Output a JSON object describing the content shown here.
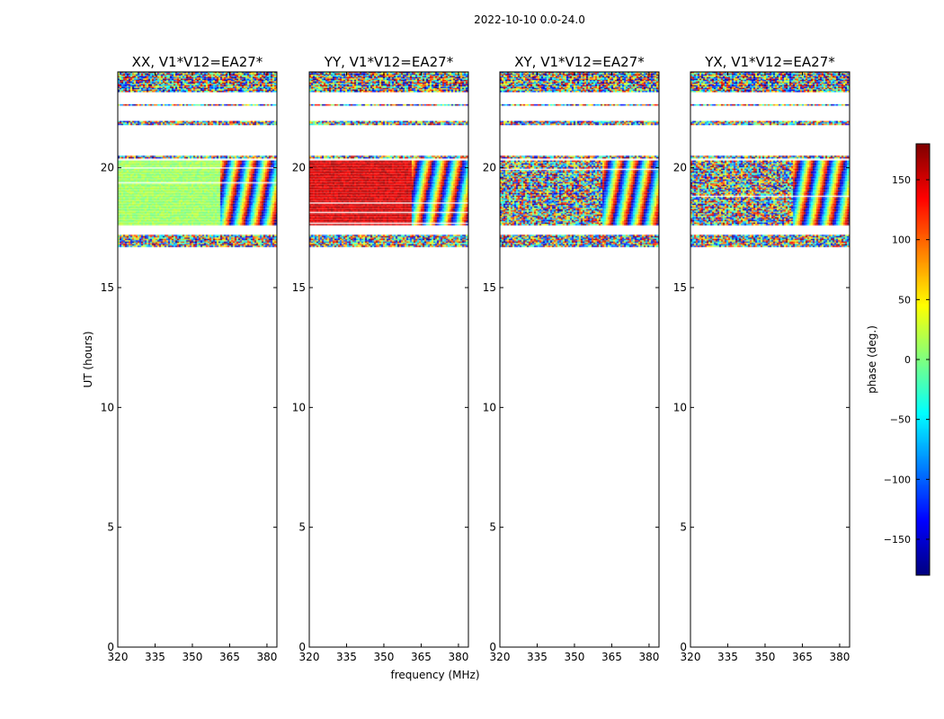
{
  "figure": {
    "suptitle": "2022-10-10 0.0-24.0"
  },
  "chart_data": {
    "type": "heatmap",
    "title": "2022-10-10 0.0-24.0",
    "xlabel": "frequency (MHz)",
    "ylabel": "UT (hours)",
    "xlim": [
      320,
      384
    ],
    "ylim": [
      0,
      24
    ],
    "xticks": [
      "320",
      "335",
      "350",
      "365",
      "380"
    ],
    "yticks": [
      "0",
      "5",
      "10",
      "15",
      "20"
    ],
    "panels": [
      {
        "title": "XX, V1*V12=EA27*",
        "base_phase": 10,
        "noise": 18
      },
      {
        "title": "YY, V1*V12=EA27*",
        "base_phase": 150,
        "noise": 20
      },
      {
        "title": "XY, V1*V12=EA27*",
        "base_phase": 0,
        "noise": 180
      },
      {
        "title": "YX, V1*V12=EA27*",
        "base_phase": -130,
        "noise": 180
      }
    ],
    "data_bands_ut": [
      {
        "from": 16.7,
        "to": 17.2,
        "kind": "noise"
      },
      {
        "from": 17.6,
        "to": 20.3,
        "kind": "main"
      },
      {
        "from": 20.4,
        "to": 20.5,
        "kind": "noise"
      },
      {
        "from": 21.8,
        "to": 21.95,
        "kind": "noise"
      },
      {
        "from": 22.6,
        "to": 22.65,
        "kind": "noise"
      },
      {
        "from": 23.2,
        "to": 24.0,
        "kind": "noise"
      }
    ],
    "fringe_start_mhz": 361,
    "colorbar": {
      "label": "phase (deg.)",
      "range": [
        -180,
        180
      ],
      "ticks": [
        "150",
        "100",
        "50",
        "0",
        "−50",
        "−100",
        "−150"
      ],
      "colormap": "jet"
    }
  }
}
